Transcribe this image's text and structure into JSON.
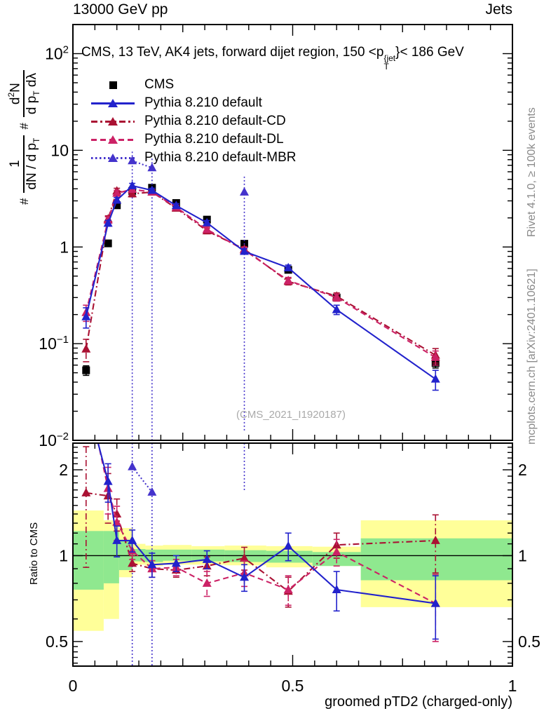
{
  "header": {
    "left": "13000 GeV pp",
    "right": "Jets"
  },
  "title": {
    "prefix": "CMS, 13 TeV, AK4 jets, forward dijet region, 150 <p",
    "sup": "{jet",
    "sub": "T",
    "suffix": "}< 186 GeV"
  },
  "watermark": "(CMS_2021_I1920187)",
  "side_notes": {
    "top": "Rivet 4.1.0, ≥ 100k events",
    "bottom": "mcplots.cern.ch [arXiv:2401.10621]"
  },
  "y_axis_label": {
    "hash1": "#",
    "frac1_num": "1",
    "frac1_den_text": "dN / d p",
    "frac1_den_sub": "T",
    "hash2": "#",
    "frac2_num_pre": "d",
    "frac2_num_sup": "2",
    "frac2_num_post": "N",
    "frac2_den_pre": "d p",
    "frac2_den_sub": "T",
    "frac2_den_post": " dλ"
  },
  "ratio_label": "Ratio to CMS",
  "x_axis": {
    "label": "groomed pTD2 (charged-only)",
    "tick_labels": [
      "0",
      "0.5",
      "1"
    ],
    "tick_values": [
      0,
      0.5,
      1
    ]
  },
  "main_y_axis": {
    "tick_labels": [
      "10^2",
      "10",
      "1",
      "10^-1",
      "10^-2"
    ],
    "tick_values": [
      100,
      10,
      1,
      0.1,
      0.01
    ]
  },
  "ratio_y_axis": {
    "tick_labels": [
      "2",
      "1",
      "0.5"
    ],
    "tick_values": [
      2,
      1,
      0.5
    ]
  },
  "colors": {
    "cms": "#000000",
    "default": "#2222cc",
    "cd": "#aa1133",
    "dl": "#cc2266",
    "mbr": "#4433cc",
    "band_yellow": "#ffff99",
    "band_green": "#8fe88f",
    "gray_text": "#8a8a8a"
  },
  "legend": {
    "items": [
      {
        "label": "CMS",
        "marker": "square",
        "line": "none",
        "color_key": "cms"
      },
      {
        "label": "Pythia 8.210 default",
        "marker": "triangle",
        "line": "solid",
        "color_key": "default"
      },
      {
        "label": "Pythia 8.210 default-CD",
        "marker": "triangle",
        "line": "dashdot",
        "color_key": "cd"
      },
      {
        "label": "Pythia 8.210 default-DL",
        "marker": "triangle",
        "line": "dashed",
        "color_key": "dl"
      },
      {
        "label": "Pythia 8.210 default-MBR",
        "marker": "triangle",
        "line": "dotted",
        "color_key": "mbr"
      }
    ]
  },
  "chart_data": [
    {
      "type": "line",
      "panel": "main",
      "yscale": "log",
      "ylim": [
        0.01,
        200
      ],
      "xlim": [
        0,
        1
      ],
      "x": [
        0.03,
        0.08,
        0.1,
        0.135,
        0.18,
        0.235,
        0.305,
        0.39,
        0.49,
        0.6,
        0.825
      ],
      "series": [
        {
          "name": "CMS",
          "color_key": "cms",
          "marker": "square",
          "line": "none",
          "values": [
            0.053,
            1.09,
            2.7,
            3.8,
            4.1,
            2.85,
            1.92,
            1.08,
            0.58,
            0.3,
            0.063
          ],
          "errors": [
            0.006,
            0.05,
            0.12,
            0.15,
            0.15,
            0.1,
            0.08,
            0.05,
            0.03,
            0.018,
            0.007
          ]
        },
        {
          "name": "Pythia 8.210 default",
          "color_key": "default",
          "marker": "triangle",
          "line": "solid",
          "values": [
            0.19,
            1.76,
            3.05,
            4.3,
            3.85,
            2.68,
            1.78,
            0.9,
            0.61,
            0.225,
            0.043
          ],
          "errors": [
            0.045,
            0.12,
            0.2,
            0.25,
            0.2,
            0.13,
            0.1,
            0.06,
            0.04,
            0.025,
            0.01
          ]
        },
        {
          "name": "Pythia 8.210 default-CD",
          "color_key": "cd",
          "marker": "triangle",
          "line": "dashdot",
          "values": [
            0.088,
            1.95,
            3.8,
            3.55,
            3.7,
            2.52,
            1.47,
            0.95,
            0.44,
            0.31,
            0.076
          ],
          "errors": [
            0.023,
            0.15,
            0.25,
            0.25,
            0.2,
            0.13,
            0.1,
            0.06,
            0.035,
            0.025,
            0.013
          ]
        },
        {
          "name": "Pythia 8.210 default-DL",
          "color_key": "dl",
          "marker": "triangle",
          "line": "dashed",
          "values": [
            0.21,
            1.9,
            3.6,
            3.95,
            3.7,
            2.58,
            1.52,
            0.93,
            0.45,
            0.3,
            0.072
          ],
          "errors": [
            0.04,
            0.15,
            0.25,
            0.25,
            0.2,
            0.13,
            0.1,
            0.06,
            0.035,
            0.025,
            0.012
          ]
        },
        {
          "name": "Pythia 8.210 default-MBR",
          "color_key": "mbr",
          "marker": "triangle",
          "line": "dotted",
          "values": [
            null,
            null,
            null,
            7.8,
            6.6,
            null,
            null,
            3.7,
            null,
            null,
            null
          ],
          "errors": [
            null,
            null,
            null,
            "full",
            "full",
            null,
            null,
            "partial",
            null,
            null,
            null
          ]
        }
      ]
    },
    {
      "type": "line",
      "panel": "ratio",
      "ylabel": "Ratio to CMS",
      "yscale": "log",
      "ylim": [
        0.41,
        2.48
      ],
      "xlim": [
        0,
        1
      ],
      "reference_line": 1,
      "x": [
        0.03,
        0.08,
        0.1,
        0.135,
        0.18,
        0.235,
        0.305,
        0.39,
        0.49,
        0.6,
        0.825
      ],
      "bands": [
        {
          "x0": 0.0,
          "x1": 0.07,
          "yellow": [
            0.545,
            1.44
          ],
          "green": [
            0.76,
            1.22
          ]
        },
        {
          "x0": 0.07,
          "x1": 0.105,
          "yellow": [
            0.6,
            1.33
          ],
          "green": [
            0.8,
            1.22
          ]
        },
        {
          "x0": 0.105,
          "x1": 0.135,
          "yellow": [
            0.84,
            1.25
          ],
          "green": [
            0.89,
            1.13
          ]
        },
        {
          "x0": 0.135,
          "x1": 0.165,
          "yellow": [
            0.93,
            1.1
          ],
          "green": [
            0.955,
            1.055
          ]
        },
        {
          "x0": 0.165,
          "x1": 0.205,
          "yellow": [
            0.92,
            1.085
          ],
          "green": [
            0.95,
            1.05
          ]
        },
        {
          "x0": 0.205,
          "x1": 0.27,
          "yellow": [
            0.93,
            1.09
          ],
          "green": [
            0.96,
            1.05
          ]
        },
        {
          "x0": 0.27,
          "x1": 0.345,
          "yellow": [
            0.93,
            1.08
          ],
          "green": [
            0.955,
            1.05
          ]
        },
        {
          "x0": 0.345,
          "x1": 0.44,
          "yellow": [
            0.925,
            1.085
          ],
          "green": [
            0.95,
            1.045
          ]
        },
        {
          "x0": 0.44,
          "x1": 0.545,
          "yellow": [
            0.91,
            1.08
          ],
          "green": [
            0.945,
            1.04
          ]
        },
        {
          "x0": 0.545,
          "x1": 0.655,
          "yellow": [
            0.92,
            1.075
          ],
          "green": [
            0.92,
            1.03
          ]
        },
        {
          "x0": 0.655,
          "x1": 1.0,
          "yellow": [
            0.66,
            1.33
          ],
          "green": [
            0.82,
            1.15
          ]
        }
      ],
      "series": [
        {
          "name": "Pythia 8.210 default",
          "color_key": "default",
          "marker": "triangle",
          "line": "solid",
          "values": [
            3.6,
            1.82,
            1.13,
            1.13,
            0.93,
            0.94,
            0.97,
            0.84,
            1.08,
            0.76,
            0.68
          ],
          "errors": [
            0,
            0.28,
            0.14,
            0.1,
            0.09,
            0.06,
            0.07,
            0.09,
            0.12,
            0.12,
            0.17
          ]
        },
        {
          "name": "Pythia 8.210 default-CD",
          "color_key": "cd",
          "marker": "triangle",
          "line": "dashdot",
          "values": [
            1.66,
            1.62,
            1.4,
            0.94,
            0.9,
            0.89,
            0.92,
            0.98,
            0.75,
            1.09,
            1.13
          ],
          "errors": [
            0.75,
            0.32,
            0.18,
            0.06,
            0.06,
            0.05,
            0.07,
            0.09,
            0.09,
            0.11,
            0.26
          ]
        },
        {
          "name": "Pythia 8.210 default-DL",
          "color_key": "dl",
          "marker": "triangle",
          "line": "dashed",
          "values": [
            3.9,
            1.72,
            1.31,
            1.04,
            0.9,
            0.91,
            0.8,
            0.87,
            0.76,
            1.03,
            0.68
          ],
          "errors": [
            0,
            0.32,
            0.18,
            0.07,
            0.06,
            0.06,
            0.08,
            0.09,
            0.09,
            0.11,
            0.18
          ]
        },
        {
          "name": "Pythia 8.210 default-MBR",
          "color_key": "mbr",
          "marker": "triangle",
          "line": "dotted",
          "values": [
            null,
            null,
            null,
            2.05,
            1.67,
            null,
            null,
            3.5,
            null,
            null,
            null
          ],
          "errors": [
            null,
            null,
            null,
            "full",
            "full",
            null,
            null,
            "partial",
            null,
            null,
            null
          ]
        }
      ]
    }
  ]
}
